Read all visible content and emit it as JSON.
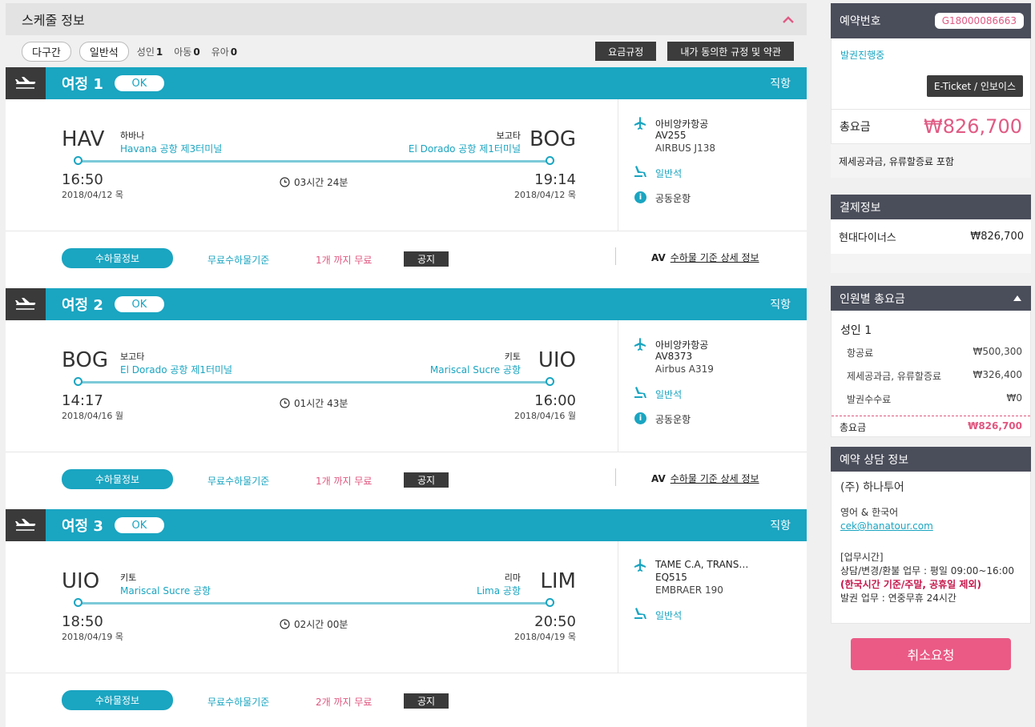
{
  "schedule": {
    "title": "스케줄 정보",
    "trip_type": "다구간",
    "cabin": "일반석",
    "adult_label": "성인",
    "adult_count": "1",
    "child_label": "아동",
    "child_count": "0",
    "infant_label": "유아",
    "infant_count": "0",
    "fare_rule_btn": "요금규정",
    "terms_btn": "내가 동의한 규정 및 약관"
  },
  "legs": [
    {
      "title": "여정 1",
      "status": "OK",
      "type": "직항",
      "from_code": "HAV",
      "from_city": "하바나",
      "from_airport": "Havana 공항 제3터미널",
      "to_code": "BOG",
      "to_city": "보고타",
      "to_airport": "El Dorado 공항 제1터미널",
      "dep_time": "16:50",
      "dep_date": "2018/04/12 목",
      "arr_time": "19:14",
      "arr_date": "2018/04/12 목",
      "duration": "03시간 24분",
      "airline": "아비앙카항공",
      "flight_no": "AV255",
      "aircraft": "AIRBUS J138",
      "cabin": "일반석",
      "codeshare": "공동운항",
      "bag_btn": "수하물정보",
      "bag_free": "무료수하물기준",
      "bag_count": "1개 까지 무료",
      "notice": "공지",
      "bag_carrier": "AV",
      "bag_detail": "수하물 기준 상세 정보"
    },
    {
      "title": "여정 2",
      "status": "OK",
      "type": "직항",
      "from_code": "BOG",
      "from_city": "보고타",
      "from_airport": "El Dorado 공항 제1터미널",
      "to_code": "UIO",
      "to_city": "키토",
      "to_airport": "Mariscal Sucre 공항",
      "dep_time": "14:17",
      "dep_date": "2018/04/16 월",
      "arr_time": "16:00",
      "arr_date": "2018/04/16 월",
      "duration": "01시간 43분",
      "airline": "아비앙카항공",
      "flight_no": "AV8373",
      "aircraft": "Airbus A319",
      "cabin": "일반석",
      "codeshare": "공동운항",
      "bag_btn": "수하물정보",
      "bag_free": "무료수하물기준",
      "bag_count": "1개 까지 무료",
      "notice": "공지",
      "bag_carrier": "AV",
      "bag_detail": "수하물 기준 상세 정보"
    },
    {
      "title": "여정 3",
      "status": "OK",
      "type": "직항",
      "from_code": "UIO",
      "from_city": "키토",
      "from_airport": "Mariscal Sucre 공항",
      "to_code": "LIM",
      "to_city": "리마",
      "to_airport": "Lima 공항",
      "dep_time": "18:50",
      "dep_date": "2018/04/19 목",
      "arr_time": "20:50",
      "arr_date": "2018/04/19 목",
      "duration": "02시간 00분",
      "airline": "TAME C.A, TRANS…",
      "flight_no": "EQ515",
      "aircraft": "EMBRAER 190",
      "cabin": "일반석",
      "codeshare": "",
      "bag_btn": "수하물정보",
      "bag_free": "무료수하물기준",
      "bag_count": "2개 까지 무료",
      "notice": "공지",
      "bag_carrier": "",
      "bag_detail": ""
    }
  ],
  "reservation": {
    "label": "예약번호",
    "number": "G18000086663",
    "status": "발권진행중",
    "eticket_btn": "E-Ticket / 인보이스",
    "total_label": "총요금",
    "total": "₩826,700",
    "tax_note": "제세공과금, 유류할증료 포함"
  },
  "payment": {
    "title": "결제정보",
    "method": "현대다이너스",
    "amount": "₩826,700"
  },
  "per_pax": {
    "title": "인원별 총요금",
    "adult": "성인 1",
    "airfare_label": "항공료",
    "airfare": "₩500,300",
    "tax_label": "제세공과금, 유류할증료",
    "tax": "₩326,400",
    "fee_label": "발권수수료",
    "fee": "₩0",
    "total_label": "총요금",
    "total": "₩826,700"
  },
  "consult": {
    "title": "예약 상담 정보",
    "company": "(주) 하나투어",
    "lang": "영어 & 한국어",
    "email": "cek@hanatour.com",
    "hours_title": "[업무시간]",
    "hours1": "상담/변경/환불 업무 : 평일 09:00~16:00",
    "hours2": "(한국시간 기준/주말, 공휴일 제외)",
    "hours3": "발권 업무 : 연중무휴 24시간"
  },
  "cancel_btn": "취소요청",
  "colors": {
    "accent": "#1aa5c1",
    "pink": "#e05a84",
    "dark": "#4a4d5a"
  }
}
